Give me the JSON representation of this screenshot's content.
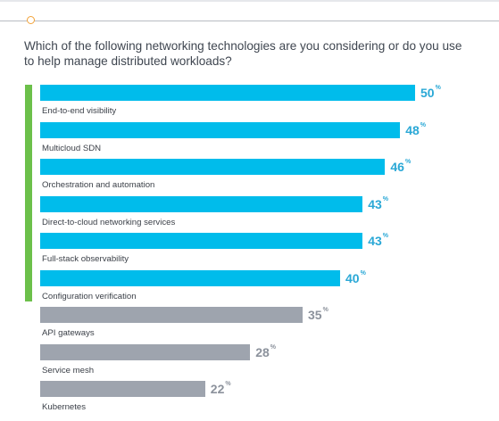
{
  "question": "Which of the following networking technologies are you considering or do you use to help manage distributed workloads?",
  "colors": {
    "highlight": "#00bceb",
    "muted": "#9ea4ae",
    "highlight_text": "#2aa8d6",
    "muted_text": "#8c929c",
    "accent": "#6cc04a",
    "marker": "#f2a33a"
  },
  "chart_data": {
    "type": "bar",
    "orientation": "horizontal",
    "title": "",
    "categories": [
      "End-to-end visibility",
      "Multicloud SDN",
      "Orchestration and automation",
      "Direct-to-cloud networking services",
      "Full-stack observability",
      "Configuration verification",
      "API gateways",
      "Service mesh",
      "Kubernetes"
    ],
    "values": [
      50,
      48,
      46,
      43,
      43,
      40,
      35,
      28,
      22
    ],
    "value_suffix": "%",
    "highlighted": [
      true,
      true,
      true,
      true,
      true,
      true,
      false,
      false,
      false
    ],
    "xlim": [
      0,
      50
    ],
    "grid": false
  }
}
